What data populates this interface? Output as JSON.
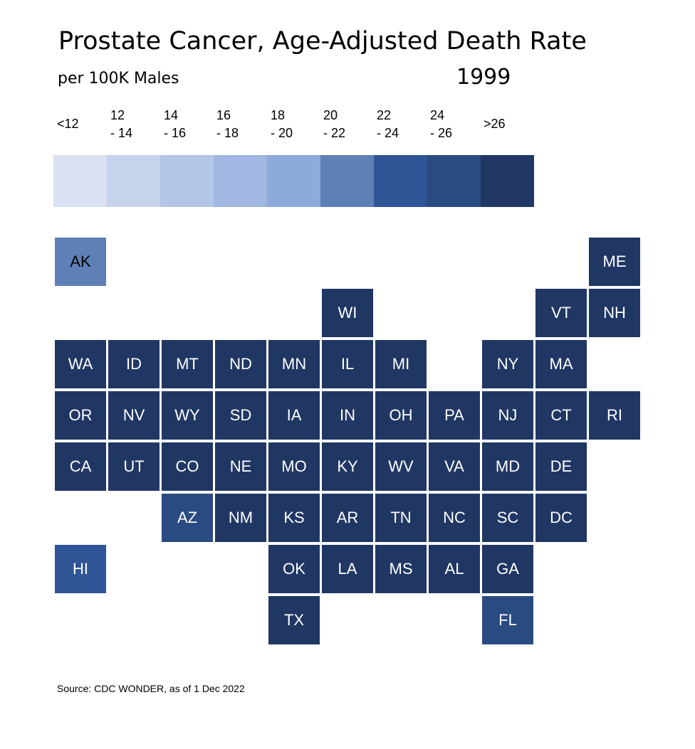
{
  "title": "Prostate Cancer, Age-Adjusted Death Rate",
  "subtitle": "per 100K Males",
  "year": "1999",
  "source": "Source: CDC WONDER, as of 1 Dec 2022",
  "legend": [
    {
      "line1": "<12",
      "line2": "",
      "color": "#dae1f2"
    },
    {
      "line1": "12",
      "line2": "- 14",
      "color": "#c5d3ec"
    },
    {
      "line1": "14",
      "line2": "- 16",
      "color": "#b4c6e7"
    },
    {
      "line1": "16",
      "line2": "- 18",
      "color": "#a0b7e1"
    },
    {
      "line1": "18",
      "line2": "- 20",
      "color": "#8eaadb"
    },
    {
      "line1": "20",
      "line2": "- 22",
      "color": "#5f80b7"
    },
    {
      "line1": "22",
      "line2": "- 24",
      "color": "#2f5597"
    },
    {
      "line1": "24",
      "line2": "- 26",
      "color": "#294b82"
    },
    {
      "line1": ">26",
      "line2": "",
      "color": "#203764"
    }
  ],
  "chart_data": {
    "type": "heatmap",
    "bins": [
      "<12",
      "12 - 14",
      "14 - 16",
      "16 - 18",
      "18 - 20",
      "20 - 22",
      "22 - 24",
      "24 - 26",
      ">26"
    ],
    "states": [
      {
        "state": "AK",
        "row": 0,
        "col": 0,
        "bin": 5
      },
      {
        "state": "ME",
        "row": 0,
        "col": 10,
        "bin": 8
      },
      {
        "state": "WI",
        "row": 1,
        "col": 5,
        "bin": 8
      },
      {
        "state": "VT",
        "row": 1,
        "col": 9,
        "bin": 8
      },
      {
        "state": "NH",
        "row": 1,
        "col": 10,
        "bin": 8
      },
      {
        "state": "WA",
        "row": 2,
        "col": 0,
        "bin": 8
      },
      {
        "state": "ID",
        "row": 2,
        "col": 1,
        "bin": 8
      },
      {
        "state": "MT",
        "row": 2,
        "col": 2,
        "bin": 8
      },
      {
        "state": "ND",
        "row": 2,
        "col": 3,
        "bin": 8
      },
      {
        "state": "MN",
        "row": 2,
        "col": 4,
        "bin": 8
      },
      {
        "state": "IL",
        "row": 2,
        "col": 5,
        "bin": 8
      },
      {
        "state": "MI",
        "row": 2,
        "col": 6,
        "bin": 8
      },
      {
        "state": "NY",
        "row": 2,
        "col": 8,
        "bin": 8
      },
      {
        "state": "MA",
        "row": 2,
        "col": 9,
        "bin": 8
      },
      {
        "state": "OR",
        "row": 3,
        "col": 0,
        "bin": 8
      },
      {
        "state": "NV",
        "row": 3,
        "col": 1,
        "bin": 8
      },
      {
        "state": "WY",
        "row": 3,
        "col": 2,
        "bin": 8
      },
      {
        "state": "SD",
        "row": 3,
        "col": 3,
        "bin": 8
      },
      {
        "state": "IA",
        "row": 3,
        "col": 4,
        "bin": 8
      },
      {
        "state": "IN",
        "row": 3,
        "col": 5,
        "bin": 8
      },
      {
        "state": "OH",
        "row": 3,
        "col": 6,
        "bin": 8
      },
      {
        "state": "PA",
        "row": 3,
        "col": 7,
        "bin": 8
      },
      {
        "state": "NJ",
        "row": 3,
        "col": 8,
        "bin": 8
      },
      {
        "state": "CT",
        "row": 3,
        "col": 9,
        "bin": 8
      },
      {
        "state": "RI",
        "row": 3,
        "col": 10,
        "bin": 8
      },
      {
        "state": "CA",
        "row": 4,
        "col": 0,
        "bin": 8
      },
      {
        "state": "UT",
        "row": 4,
        "col": 1,
        "bin": 8
      },
      {
        "state": "CO",
        "row": 4,
        "col": 2,
        "bin": 8
      },
      {
        "state": "NE",
        "row": 4,
        "col": 3,
        "bin": 8
      },
      {
        "state": "MO",
        "row": 4,
        "col": 4,
        "bin": 8
      },
      {
        "state": "KY",
        "row": 4,
        "col": 5,
        "bin": 8
      },
      {
        "state": "WV",
        "row": 4,
        "col": 6,
        "bin": 8
      },
      {
        "state": "VA",
        "row": 4,
        "col": 7,
        "bin": 8
      },
      {
        "state": "MD",
        "row": 4,
        "col": 8,
        "bin": 8
      },
      {
        "state": "DE",
        "row": 4,
        "col": 9,
        "bin": 8
      },
      {
        "state": "AZ",
        "row": 5,
        "col": 2,
        "bin": 7
      },
      {
        "state": "NM",
        "row": 5,
        "col": 3,
        "bin": 8
      },
      {
        "state": "KS",
        "row": 5,
        "col": 4,
        "bin": 8
      },
      {
        "state": "AR",
        "row": 5,
        "col": 5,
        "bin": 8
      },
      {
        "state": "TN",
        "row": 5,
        "col": 6,
        "bin": 8
      },
      {
        "state": "NC",
        "row": 5,
        "col": 7,
        "bin": 8
      },
      {
        "state": "SC",
        "row": 5,
        "col": 8,
        "bin": 8
      },
      {
        "state": "DC",
        "row": 5,
        "col": 9,
        "bin": 8
      },
      {
        "state": "HI",
        "row": 6,
        "col": 0,
        "bin": 6
      },
      {
        "state": "OK",
        "row": 6,
        "col": 4,
        "bin": 8
      },
      {
        "state": "LA",
        "row": 6,
        "col": 5,
        "bin": 8
      },
      {
        "state": "MS",
        "row": 6,
        "col": 6,
        "bin": 8
      },
      {
        "state": "AL",
        "row": 6,
        "col": 7,
        "bin": 8
      },
      {
        "state": "GA",
        "row": 6,
        "col": 8,
        "bin": 8
      },
      {
        "state": "TX",
        "row": 7,
        "col": 4,
        "bin": 8
      },
      {
        "state": "FL",
        "row": 7,
        "col": 8,
        "bin": 7
      }
    ]
  }
}
